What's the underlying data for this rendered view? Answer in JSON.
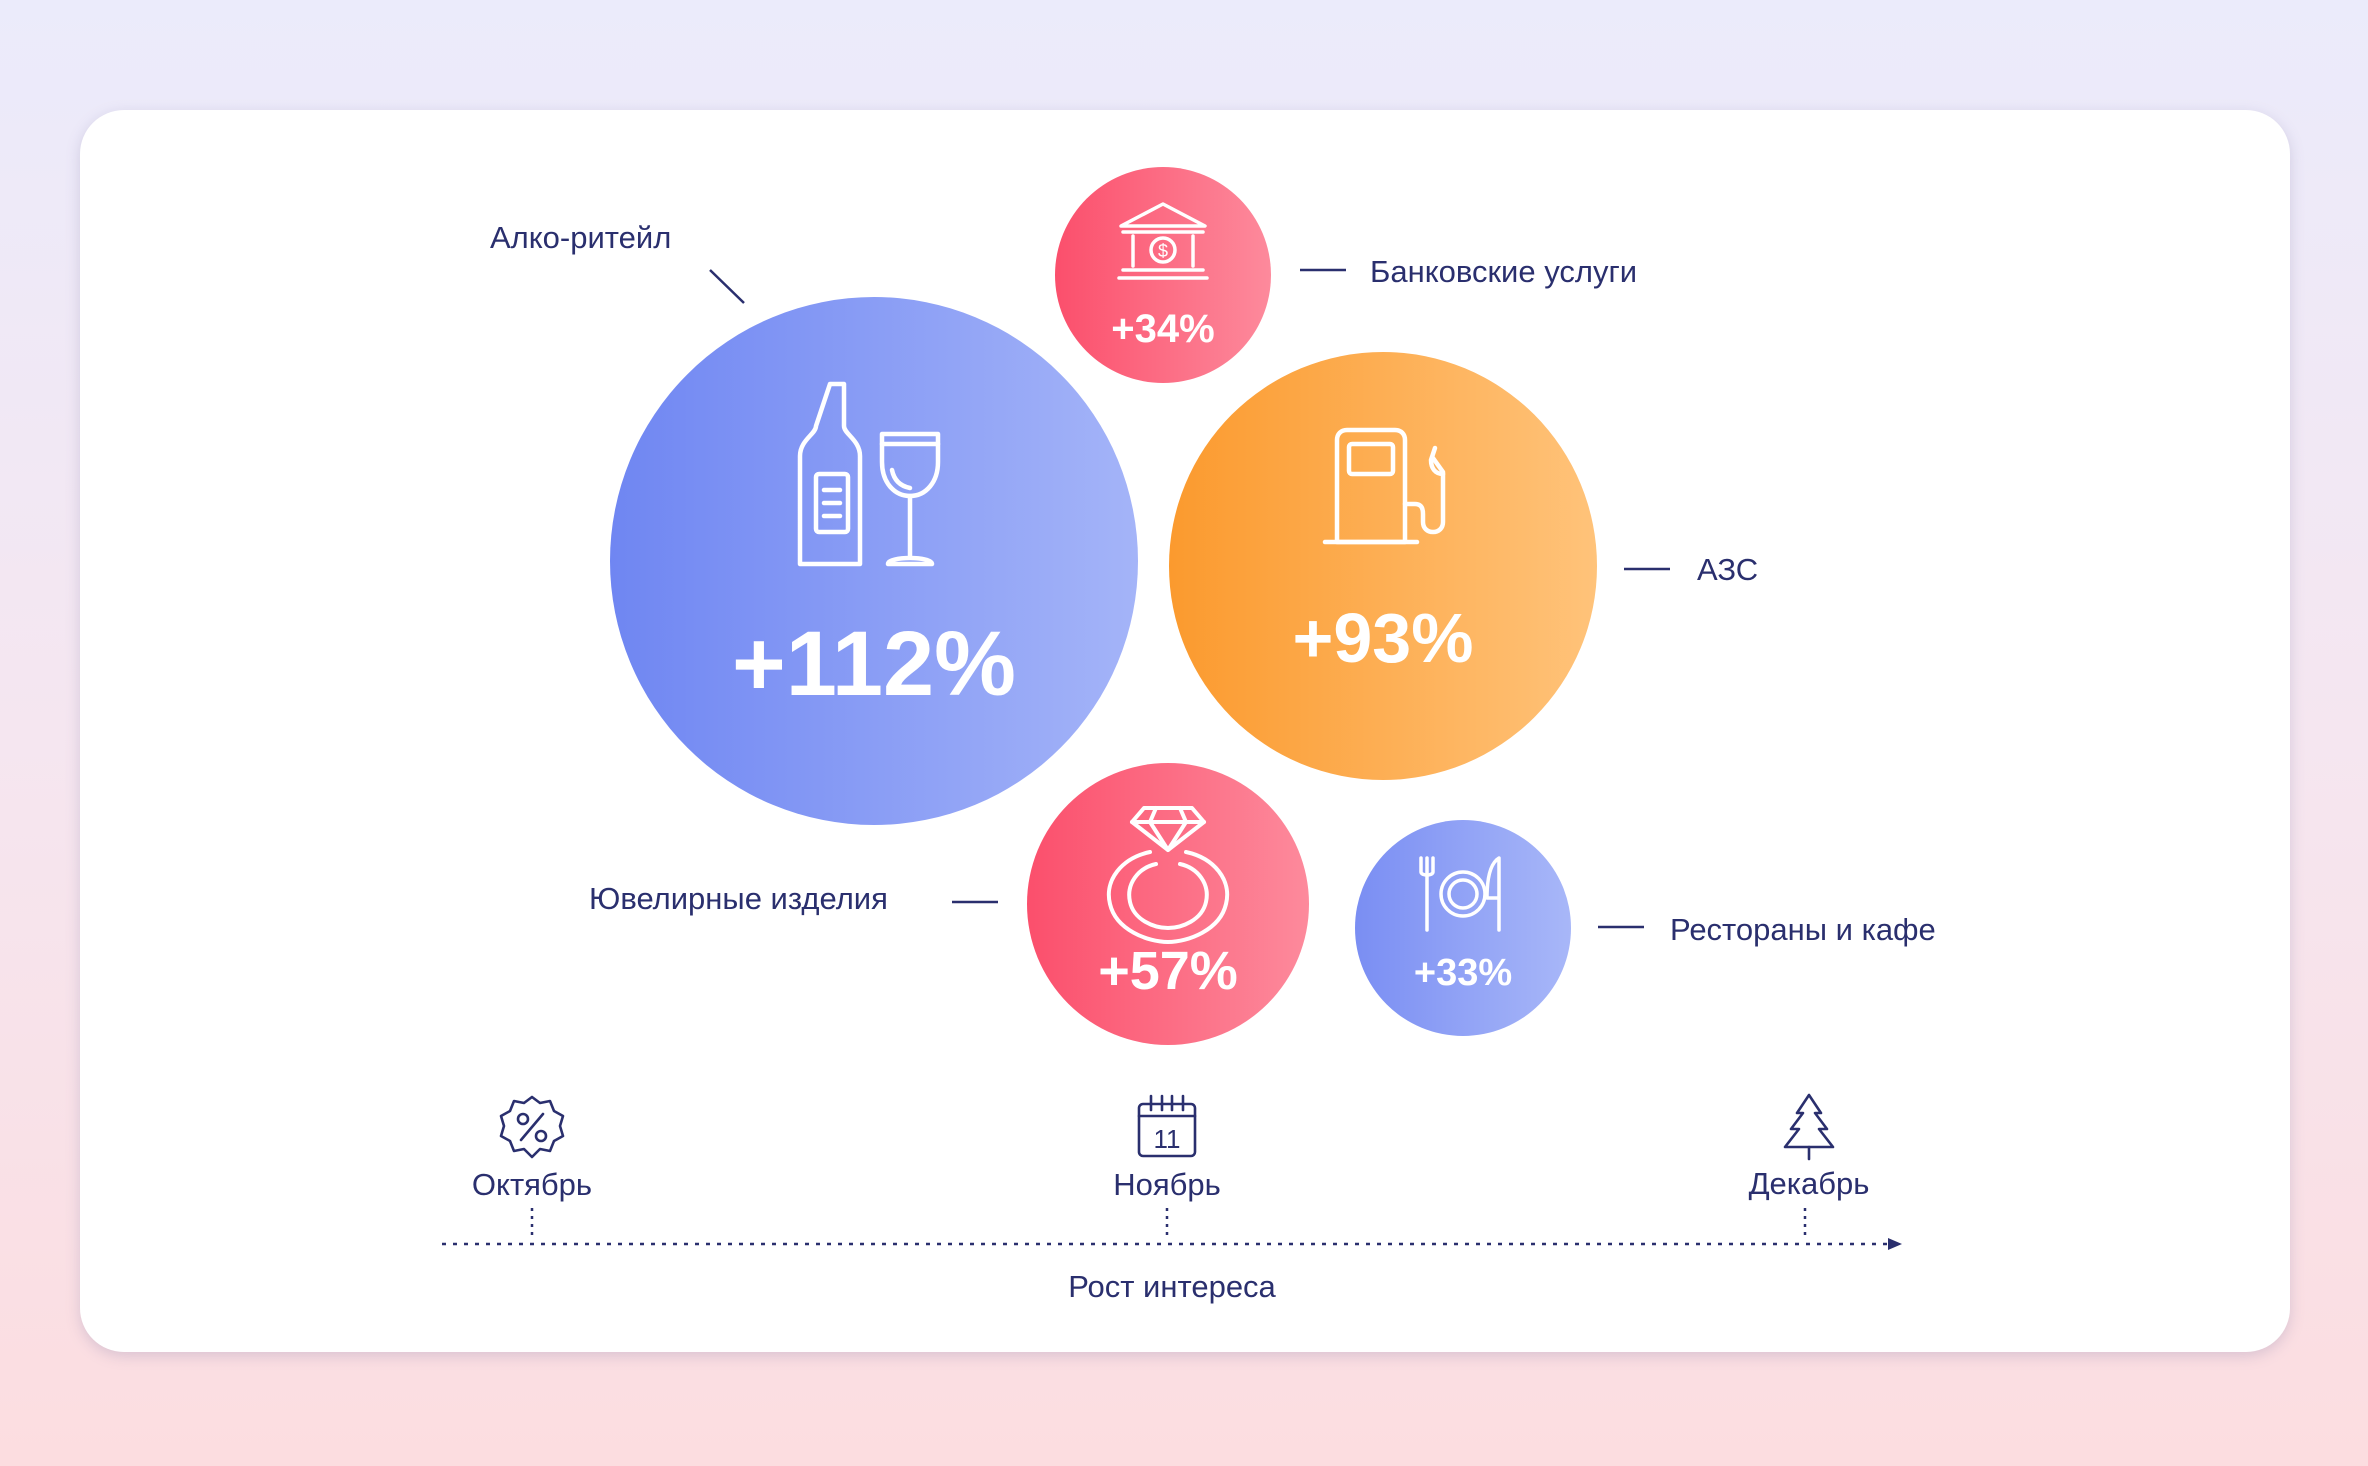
{
  "chart_data": {
    "type": "bubble",
    "series": [
      {
        "label": "Алко-ритейл",
        "value_text": "+112%",
        "value": 112,
        "color_start": "#6f86f2",
        "color_end": "#a4b4f8",
        "icon": "wine-bottle-glass-icon"
      },
      {
        "label": "Банковские услуги",
        "value_text": "+34%",
        "value": 34,
        "color_start": "#fb4f6c",
        "color_end": "#fd8a9c",
        "icon": "bank-building-icon"
      },
      {
        "label": "АЗС",
        "value_text": "+93%",
        "value": 93,
        "color_start": "#fb9a2e",
        "color_end": "#ffc37a",
        "icon": "fuel-pump-icon"
      },
      {
        "label": "Ювелирные изделия",
        "value_text": "+57%",
        "value": 57,
        "color_start": "#fb4f6c",
        "color_end": "#fd8a9c",
        "icon": "diamond-ring-icon"
      },
      {
        "label": "Рестораны и кафе",
        "value_text": "+33%",
        "value": 33,
        "color_start": "#7a8ef3",
        "color_end": "#a8b7f8",
        "icon": "plate-cutlery-icon"
      }
    ],
    "timeline": {
      "points": [
        {
          "label": "Октябрь",
          "icon": "discount-badge-icon"
        },
        {
          "label": "Ноябрь",
          "icon": "calendar-11-icon",
          "icon_text": "11"
        },
        {
          "label": "Декабрь",
          "icon": "christmas-tree-icon"
        }
      ],
      "axis_label": "Рост интереса"
    }
  }
}
